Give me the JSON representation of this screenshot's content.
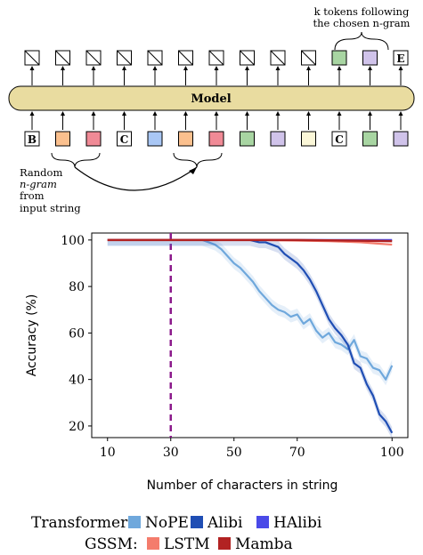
{
  "diagram": {
    "top_note": [
      "k tokens following",
      "the chosen n-gram"
    ],
    "model_label": "Model",
    "side_label": [
      "Random",
      "n-gram",
      "from",
      "input string"
    ],
    "output_tokens": [
      "",
      "",
      "",
      "",
      "",
      "",
      "",
      "",
      "",
      "",
      "",
      "",
      "E"
    ],
    "output_colors": [
      "",
      "",
      "",
      "",
      "",
      "",
      "",
      "",
      "",
      "",
      "#a8d5a2",
      "#d0c3ea",
      ""
    ],
    "input_tokens": [
      "B",
      "",
      "",
      "C",
      "",
      "",
      "",
      "",
      "",
      "",
      "C",
      "",
      ""
    ],
    "input_colors": [
      "#ffffff",
      "#fbc08e",
      "#f08a96",
      "#ffffff",
      "#a9c7f5",
      "#fbc08e",
      "#f08a96",
      "#a8d5a2",
      "#d0c3ea",
      "#fbf7d8",
      "#ffffff",
      "#a8d5a2",
      "#d0c3ea"
    ]
  },
  "chart_data": {
    "type": "line",
    "xlabel": "Number of characters in string",
    "ylabel": "Accuracy (%)",
    "xlim": [
      5,
      105
    ],
    "ylim": [
      15,
      103
    ],
    "xticks": [
      "10",
      "30",
      "50",
      "70",
      "100"
    ],
    "yticks": [
      "20",
      "40",
      "60",
      "80",
      "100"
    ],
    "vline_x": 30,
    "series": [
      {
        "name": "NoPE",
        "color": "#6fa8dc",
        "x": [
          10,
          20,
          30,
          35,
          40,
          42,
          44,
          46,
          48,
          50,
          52,
          54,
          56,
          58,
          60,
          62,
          64,
          66,
          68,
          70,
          72,
          74,
          76,
          78,
          80,
          82,
          84,
          86,
          88,
          90,
          92,
          94,
          96,
          98,
          100
        ],
        "y": [
          100,
          100,
          100,
          100,
          100,
          99,
          98,
          96,
          93,
          90,
          88,
          85,
          82,
          78,
          75,
          72,
          70,
          69,
          67,
          68,
          64,
          66,
          61,
          58,
          60,
          56,
          55,
          53,
          57,
          50,
          49,
          45,
          44,
          40,
          46
        ]
      },
      {
        "name": "Alibi",
        "color": "#1f4eb4",
        "x": [
          10,
          20,
          30,
          40,
          50,
          55,
          58,
          60,
          62,
          64,
          66,
          68,
          70,
          72,
          74,
          76,
          78,
          80,
          82,
          84,
          86,
          88,
          90,
          92,
          94,
          96,
          98,
          100
        ],
        "y": [
          100,
          100,
          100,
          100,
          100,
          100,
          99,
          99,
          98,
          97,
          94,
          92,
          90,
          87,
          83,
          78,
          72,
          66,
          62,
          59,
          55,
          47,
          45,
          38,
          33,
          25,
          22,
          17
        ]
      },
      {
        "name": "HAlibi",
        "color": "#4a4ae8",
        "x": [
          10,
          40,
          70,
          100
        ],
        "y": [
          100,
          100,
          100,
          100
        ]
      },
      {
        "name": "LSTM",
        "color": "#f47c6c",
        "x": [
          10,
          60,
          80,
          90,
          95,
          100
        ],
        "y": [
          100,
          100,
          99.5,
          99,
          98.5,
          98
        ]
      },
      {
        "name": "Mamba",
        "color": "#b22222",
        "x": [
          10,
          40,
          70,
          90,
          100
        ],
        "y": [
          100,
          100,
          100,
          99.7,
          99.5
        ]
      }
    ],
    "legend": {
      "row1_label": "Transformer:",
      "row1_items": [
        "NoPE",
        "Alibi",
        "HAlibi"
      ],
      "row2_label": "GSSM:",
      "row2_items": [
        "LSTM",
        "Mamba"
      ]
    }
  }
}
